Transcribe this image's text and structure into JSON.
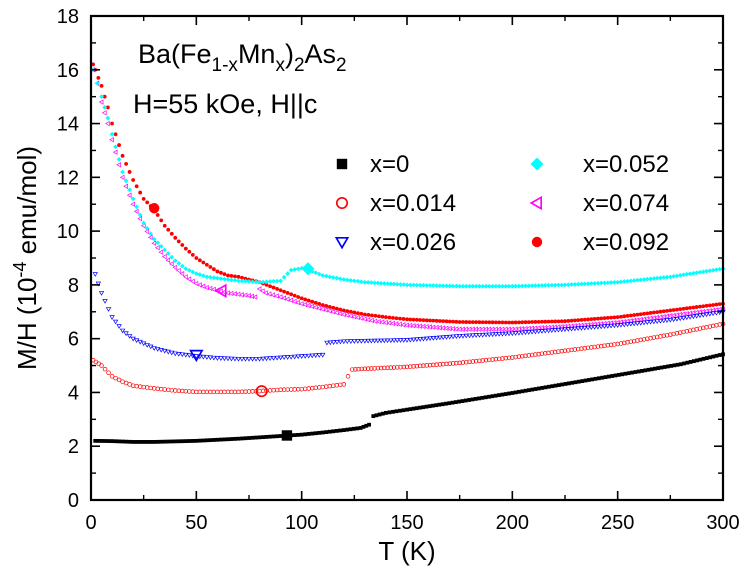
{
  "chart_data": {
    "type": "scatter",
    "xlabel": "T (K)",
    "ylabel_parts": [
      "M/H (10",
      "-4",
      " emu/mol)"
    ],
    "xlim": [
      0,
      300
    ],
    "ylim": [
      0,
      18
    ],
    "xticks": [
      "0",
      "50",
      "100",
      "150",
      "200",
      "250",
      "300"
    ],
    "yticks": [
      "0",
      "2",
      "4",
      "6",
      "8",
      "10",
      "12",
      "14",
      "16",
      "18"
    ],
    "grid": false,
    "legend_placement": "upper-right",
    "annotations": {
      "compound_parts": [
        {
          "t": "Ba(Fe",
          "s": "n"
        },
        {
          "t": "1-x",
          "s": "sub"
        },
        {
          "t": "Mn",
          "s": "n"
        },
        {
          "t": "x",
          "s": "sub"
        },
        {
          "t": ")",
          "s": "n"
        },
        {
          "t": "2",
          "s": "sub"
        },
        {
          "t": "As",
          "s": "n"
        },
        {
          "t": "2",
          "s": "sub"
        }
      ],
      "field": "H=55 kOe, H||c"
    },
    "series": [
      {
        "name": "x=0",
        "color": "#000000",
        "marker": "square-filled",
        "points": [
          [
            2,
            2.2
          ],
          [
            10,
            2.19
          ],
          [
            20,
            2.16
          ],
          [
            30,
            2.16
          ],
          [
            40,
            2.18
          ],
          [
            50,
            2.2
          ],
          [
            60,
            2.24
          ],
          [
            70,
            2.28
          ],
          [
            80,
            2.33
          ],
          [
            90,
            2.38
          ],
          [
            100,
            2.43
          ],
          [
            110,
            2.51
          ],
          [
            120,
            2.6
          ],
          [
            128,
            2.68
          ],
          [
            132,
            2.8
          ],
          [
            134,
            3.12
          ],
          [
            140,
            3.24
          ],
          [
            150,
            3.36
          ],
          [
            170,
            3.6
          ],
          [
            200,
            3.98
          ],
          [
            230,
            4.38
          ],
          [
            260,
            4.78
          ],
          [
            280,
            5.05
          ],
          [
            300,
            5.42
          ]
        ],
        "big_marker_at": [
          93,
          2.4
        ]
      },
      {
        "name": "x=0.014",
        "color": "#ff0000",
        "marker": "circle-open",
        "points": [
          [
            1,
            5.2
          ],
          [
            5,
            5.0
          ],
          [
            10,
            4.6
          ],
          [
            15,
            4.4
          ],
          [
            20,
            4.25
          ],
          [
            30,
            4.15
          ],
          [
            40,
            4.07
          ],
          [
            50,
            4.02
          ],
          [
            60,
            4.02
          ],
          [
            70,
            4.02
          ],
          [
            80,
            4.05
          ],
          [
            90,
            4.1
          ],
          [
            100,
            4.12
          ],
          [
            110,
            4.2
          ],
          [
            120,
            4.3
          ],
          [
            122,
            4.6
          ],
          [
            124,
            4.85
          ],
          [
            130,
            4.88
          ],
          [
            150,
            4.95
          ],
          [
            175,
            5.1
          ],
          [
            200,
            5.3
          ],
          [
            225,
            5.55
          ],
          [
            250,
            5.8
          ],
          [
            275,
            6.15
          ],
          [
            300,
            6.55
          ]
        ],
        "big_marker_at": [
          81,
          4.05
        ]
      },
      {
        "name": "x=0.026",
        "color": "#0000ff",
        "marker": "triangle-down-open",
        "points": [
          [
            2,
            8.4
          ],
          [
            5,
            7.7
          ],
          [
            10,
            6.8
          ],
          [
            15,
            6.3
          ],
          [
            20,
            6.0
          ],
          [
            30,
            5.65
          ],
          [
            40,
            5.45
          ],
          [
            50,
            5.35
          ],
          [
            60,
            5.28
          ],
          [
            70,
            5.25
          ],
          [
            80,
            5.25
          ],
          [
            90,
            5.3
          ],
          [
            100,
            5.35
          ],
          [
            110,
            5.4
          ],
          [
            112,
            5.85
          ],
          [
            120,
            5.9
          ],
          [
            130,
            5.92
          ],
          [
            150,
            5.95
          ],
          [
            175,
            6.1
          ],
          [
            200,
            6.2
          ],
          [
            225,
            6.35
          ],
          [
            250,
            6.5
          ],
          [
            275,
            6.7
          ],
          [
            300,
            7.0
          ]
        ],
        "big_marker_at": [
          50,
          5.4
        ]
      },
      {
        "name": "x=0.052",
        "color": "#00ffff",
        "marker": "diamond-filled",
        "points": [
          [
            1,
            16.0
          ],
          [
            3,
            15.5
          ],
          [
            5,
            15.0
          ],
          [
            8,
            14.2
          ],
          [
            10,
            13.6
          ],
          [
            15,
            12.2
          ],
          [
            20,
            11.2
          ],
          [
            25,
            10.3
          ],
          [
            30,
            9.7
          ],
          [
            35,
            9.3
          ],
          [
            40,
            8.9
          ],
          [
            45,
            8.6
          ],
          [
            50,
            8.42
          ],
          [
            55,
            8.3
          ],
          [
            60,
            8.25
          ],
          [
            65,
            8.2
          ],
          [
            70,
            8.15
          ],
          [
            80,
            8.1
          ],
          [
            90,
            8.15
          ],
          [
            95,
            8.55
          ],
          [
            100,
            8.62
          ],
          [
            105,
            8.5
          ],
          [
            110,
            8.35
          ],
          [
            120,
            8.2
          ],
          [
            130,
            8.1
          ],
          [
            150,
            8.0
          ],
          [
            175,
            7.95
          ],
          [
            200,
            7.95
          ],
          [
            225,
            8.0
          ],
          [
            250,
            8.1
          ],
          [
            275,
            8.3
          ],
          [
            300,
            8.6
          ]
        ],
        "big_marker_at": [
          103,
          8.6
        ]
      },
      {
        "name": "x=0.074",
        "color": "#ff00ff",
        "marker": "triangle-left-open",
        "points": [
          [
            1,
            16.0
          ],
          [
            3,
            15.5
          ],
          [
            5,
            14.8
          ],
          [
            8,
            14.0
          ],
          [
            10,
            13.4
          ],
          [
            15,
            12.0
          ],
          [
            20,
            11.0
          ],
          [
            25,
            10.2
          ],
          [
            30,
            9.55
          ],
          [
            35,
            9.05
          ],
          [
            40,
            8.65
          ],
          [
            45,
            8.3
          ],
          [
            50,
            8.05
          ],
          [
            55,
            7.9
          ],
          [
            60,
            7.8
          ],
          [
            65,
            7.7
          ],
          [
            70,
            7.65
          ],
          [
            75,
            7.6
          ],
          [
            78,
            7.55
          ],
          [
            80,
            7.85
          ],
          [
            83,
            7.7
          ],
          [
            90,
            7.55
          ],
          [
            100,
            7.3
          ],
          [
            110,
            7.1
          ],
          [
            120,
            6.9
          ],
          [
            135,
            6.65
          ],
          [
            150,
            6.5
          ],
          [
            175,
            6.35
          ],
          [
            200,
            6.35
          ],
          [
            225,
            6.45
          ],
          [
            250,
            6.6
          ],
          [
            275,
            6.85
          ],
          [
            300,
            7.1
          ]
        ],
        "big_marker_at": [
          62,
          7.78
        ]
      },
      {
        "name": "x=0.092",
        "color": "#ff0000",
        "marker": "circle-filled",
        "points": [
          [
            1,
            16.2
          ],
          [
            2,
            16.0
          ],
          [
            5,
            15.4
          ],
          [
            8,
            14.6
          ],
          [
            10,
            14.0
          ],
          [
            15,
            12.8
          ],
          [
            20,
            11.9
          ],
          [
            25,
            11.2
          ],
          [
            30,
            10.8
          ],
          [
            35,
            10.2
          ],
          [
            40,
            9.75
          ],
          [
            45,
            9.35
          ],
          [
            50,
            9.0
          ],
          [
            55,
            8.75
          ],
          [
            60,
            8.5
          ],
          [
            65,
            8.35
          ],
          [
            70,
            8.3
          ],
          [
            75,
            8.2
          ],
          [
            80,
            8.1
          ],
          [
            90,
            7.8
          ],
          [
            100,
            7.5
          ],
          [
            110,
            7.25
          ],
          [
            120,
            7.05
          ],
          [
            130,
            6.9
          ],
          [
            140,
            6.8
          ],
          [
            150,
            6.72
          ],
          [
            175,
            6.62
          ],
          [
            200,
            6.6
          ],
          [
            225,
            6.65
          ],
          [
            250,
            6.8
          ],
          [
            275,
            7.05
          ],
          [
            300,
            7.3
          ]
        ],
        "big_marker_at": [
          30,
          10.85
        ]
      }
    ]
  }
}
